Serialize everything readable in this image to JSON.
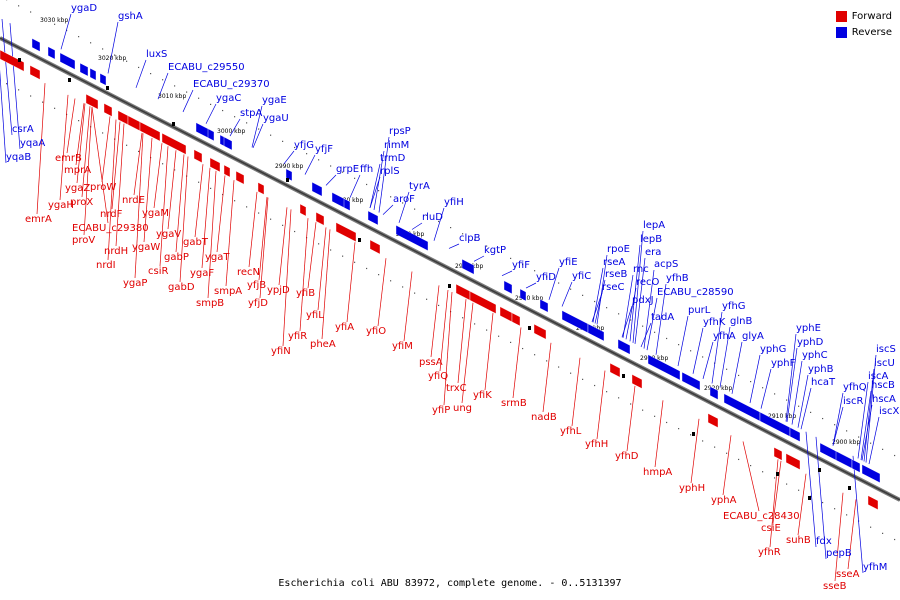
{
  "legend": {
    "forward_label": "Forward",
    "reverse_label": "Reverse",
    "forward_color": "#e00000",
    "reverse_color": "#0000e0"
  },
  "caption": "Escherichia coli ABU 83972, complete genome. - 0..5131397",
  "ticks": [
    "3030 kbp",
    "3020 kbp",
    "3010 kbp",
    "3000 kbp",
    "2990 kbp",
    "2980 kbp",
    "2970 kbp",
    "2960 kbp",
    "2950 kbp",
    "2940 kbp",
    "2930 kbp",
    "2920 kbp",
    "2910 kbp",
    "2900 kbp"
  ],
  "forward_genes": [
    "emrB",
    "mprA",
    "ygaZ",
    "ygaH",
    "emrA",
    "proW",
    "proX",
    "nrdE",
    "nrdF",
    "ECABU_c29380",
    "ygaM",
    "proV",
    "ygaW",
    "nrdH",
    "nrdI",
    "ygaV",
    "gabT",
    "gabP",
    "csiR",
    "ygaP",
    "ygaT",
    "gabD",
    "ygaF",
    "smpA",
    "recN",
    "smpB",
    "yfjB",
    "ypjD",
    "yfjD",
    "yfiB",
    "yfiL",
    "yfiR",
    "yfiA",
    "yfiN",
    "pheA",
    "yfiO",
    "yfiM",
    "pssA",
    "yfiQ",
    "trxC",
    "yfiP",
    "ung",
    "yfiK",
    "srmB",
    "nadB",
    "yfhL",
    "yfhH",
    "yfhD",
    "hmpA",
    "yphH",
    "yphA",
    "ECABU_c28430",
    "csiE",
    "suhB",
    "yfhR",
    "sseA",
    "sseB"
  ],
  "reverse_genes": [
    "ygaD",
    "gshA",
    "luxS",
    "ECABU_c29550",
    "ECABU_c29370",
    "ygaC",
    "ygaE",
    "stpA",
    "ygaU",
    "csrA",
    "yqaA",
    "yqaB",
    "rpsP",
    "rimM",
    "trmD",
    "yfjG",
    "yfjF",
    "grpE",
    "ffh",
    "rplS",
    "tyrA",
    "aroF",
    "yfiH",
    "rluD",
    "clpB",
    "kgtP",
    "yfiF",
    "yfiE",
    "yfiD",
    "yfiC",
    "lepA",
    "lepB",
    "rpoE",
    "era",
    "rseA",
    "acpS",
    "rseB",
    "rnc",
    "rseC",
    "recO",
    "yfhB",
    "pdxJ",
    "ECABU_c28590",
    "tadA",
    "purL",
    "yfhG",
    "yfhK",
    "glnB",
    "yfhA",
    "glyA",
    "yphE",
    "yphD",
    "yphG",
    "yphF",
    "yphC",
    "yphB",
    "hcaT",
    "iscS",
    "iscU",
    "iscA",
    "yfhQ",
    "hscB",
    "iscR",
    "hscA",
    "iscX",
    "fdx",
    "pepB",
    "yfhM"
  ]
}
